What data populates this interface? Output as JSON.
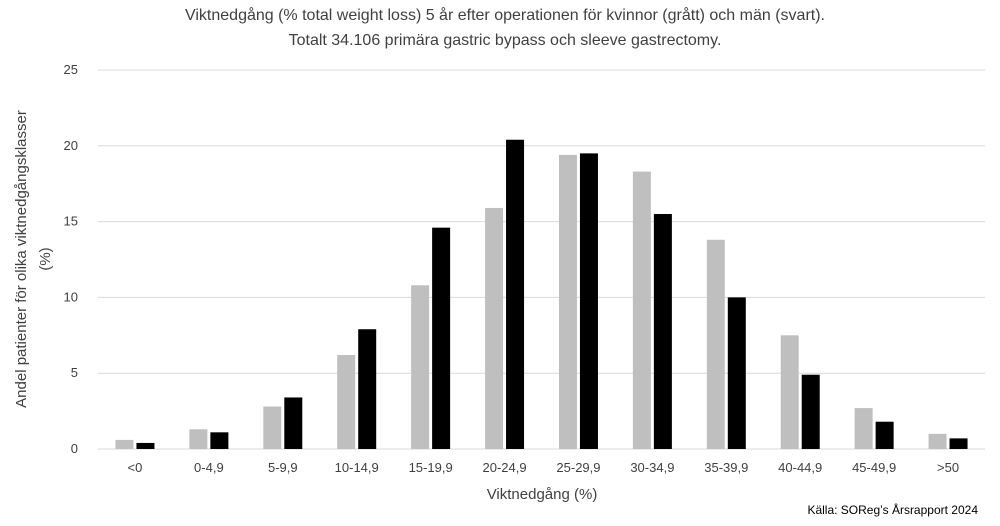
{
  "chart_data": {
    "type": "bar",
    "title_lines": [
      "Viktnedgång (% total weight loss) 5 år efter operationen för kvinnor (grått) och män (svart).",
      "Totalt 34.106 primära gastric bypass och sleeve gastrectomy."
    ],
    "xlabel": "Viktnedgång (%)",
    "ylabel_lines": [
      "Andel patienter för olika viktnedgångsklasser",
      "(%)"
    ],
    "source": "Källa: SOReg’s Årsrapport 2024",
    "categories": [
      "<0",
      "0-4,9",
      "5-9,9",
      "10-14,9",
      "15-19,9",
      "20-24,9",
      "25-29,9",
      "30-34,9",
      "35-39,9",
      "40-44,9",
      "45-49,9",
      ">50"
    ],
    "series": [
      {
        "values": [
          0.6,
          1.3,
          2.8,
          6.2,
          10.8,
          15.9,
          19.4,
          18.3,
          13.8,
          7.5,
          2.7,
          1.0
        ],
        "color": "#bfbfbf"
      },
      {
        "values": [
          0.4,
          1.1,
          3.4,
          7.9,
          14.6,
          20.4,
          19.5,
          15.5,
          10.0,
          4.9,
          1.8,
          0.7
        ],
        "color": "#000000"
      }
    ],
    "ylim": [
      0,
      25
    ],
    "yticks": [
      "0",
      "5",
      "10",
      "15",
      "20",
      "25"
    ],
    "grid": true,
    "legend": "none"
  }
}
